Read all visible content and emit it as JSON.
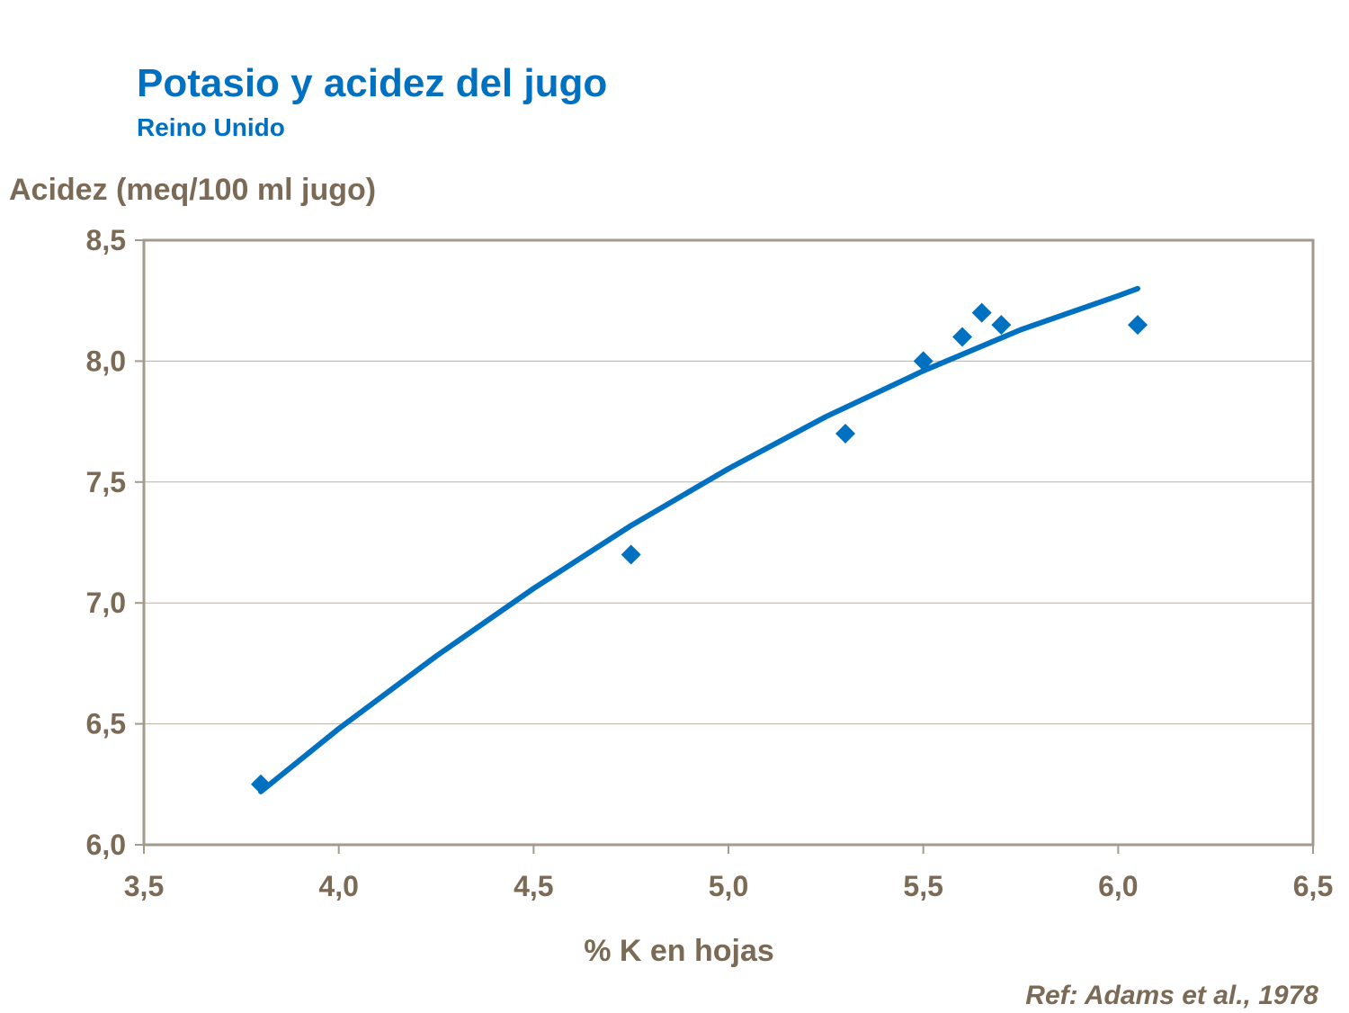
{
  "chart_data": {
    "type": "scatter",
    "title": "Potasio y acidez del jugo",
    "subtitle": "Reino Unido",
    "xlabel": "% K en hojas",
    "ylabel": "Acidez (meq/100 ml jugo)",
    "xlim": [
      3.5,
      6.5
    ],
    "ylim": [
      6.0,
      8.5
    ],
    "x_ticks": [
      "3,5",
      "4,0",
      "4,5",
      "5,0",
      "5,5",
      "6,0",
      "6,5"
    ],
    "y_ticks": [
      "6,0",
      "6,5",
      "7,0",
      "7,5",
      "8,0",
      "8,5"
    ],
    "grid": "horizontal",
    "points": [
      {
        "x": 3.8,
        "y": 6.25
      },
      {
        "x": 4.75,
        "y": 7.2
      },
      {
        "x": 5.3,
        "y": 7.7
      },
      {
        "x": 5.5,
        "y": 8.0
      },
      {
        "x": 5.6,
        "y": 8.1
      },
      {
        "x": 5.65,
        "y": 8.2
      },
      {
        "x": 5.7,
        "y": 8.15
      },
      {
        "x": 6.05,
        "y": 8.15
      }
    ],
    "trendline": [
      {
        "x": 3.8,
        "y": 6.22
      },
      {
        "x": 4.0,
        "y": 6.48
      },
      {
        "x": 4.25,
        "y": 6.78
      },
      {
        "x": 4.5,
        "y": 7.06
      },
      {
        "x": 4.75,
        "y": 7.32
      },
      {
        "x": 5.0,
        "y": 7.555
      },
      {
        "x": 5.25,
        "y": 7.77
      },
      {
        "x": 5.5,
        "y": 7.96
      },
      {
        "x": 5.75,
        "y": 8.13
      },
      {
        "x": 6.0,
        "y": 8.27
      },
      {
        "x": 6.05,
        "y": 8.3
      }
    ],
    "marker": "diamond",
    "colors": {
      "series": "#0070C0",
      "text": "#7B6A55",
      "axis": "#A39A8C",
      "grid": "#B8AFA3"
    },
    "reference": "Ref: Adams et al., 1978"
  }
}
